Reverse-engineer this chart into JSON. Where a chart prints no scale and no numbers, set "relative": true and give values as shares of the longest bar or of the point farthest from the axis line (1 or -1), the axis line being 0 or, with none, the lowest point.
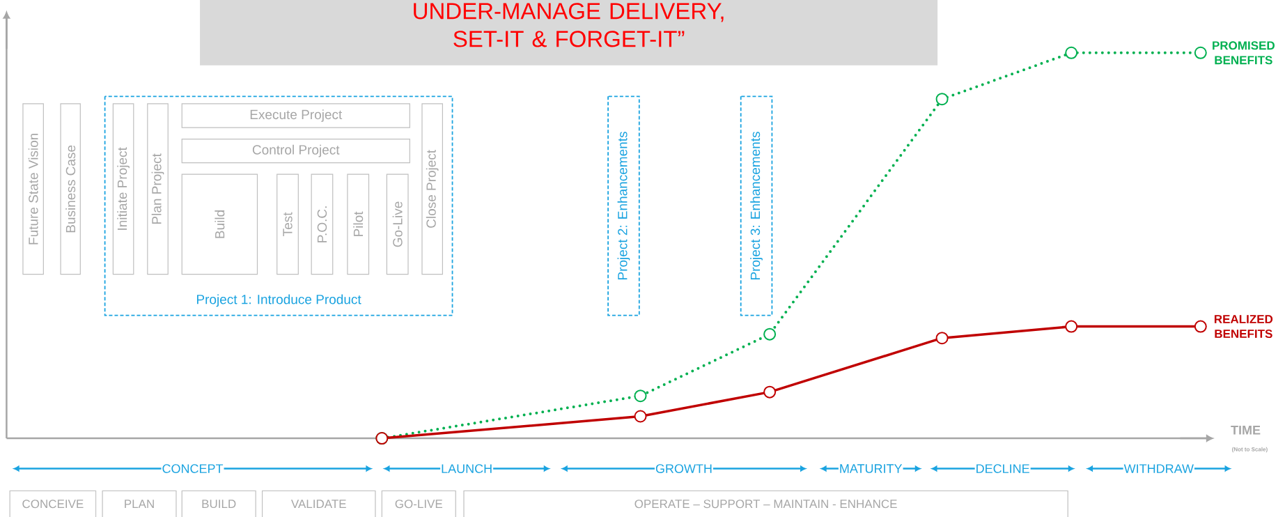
{
  "chart_data": {
    "type": "line",
    "relative": true,
    "title": "UNDER-MANAGE DELIVERY, SET-IT & FORGET-IT”",
    "xlabel": "TIME",
    "marker": "circle",
    "categories": [
      null,
      null,
      null,
      null,
      null,
      null,
      null,
      null,
      null,
      null,
      null,
      null,
      null,
      null,
      null,
      null,
      null,
      null,
      null,
      null
    ],
    "series": [
      {
        "name": "PROMISED BENEFITS",
        "color": "#00b050",
        "line_style": "dotted",
        "values": [
          0,
          null,
          null,
          null,
          null,
          null,
          0.11,
          null,
          null,
          0.27,
          null,
          null,
          null,
          0.88,
          null,
          null,
          1,
          null,
          null,
          1
        ]
      },
      {
        "name": "REALIZED BENEFITS",
        "color": "#c00000",
        "line_style": "solid",
        "values": [
          0,
          null,
          null,
          null,
          null,
          null,
          0.057,
          null,
          null,
          0.12,
          null,
          null,
          null,
          0.26,
          null,
          null,
          0.29,
          null,
          null,
          0.29
        ]
      }
    ],
    "annotations": [
      "(Not to Scale)",
      "CONCEPT",
      "LAUNCH",
      "GROWTH",
      "MATURITY",
      "DECLINE",
      "WITHDRAW",
      "CONCEIVE",
      "PLAN",
      "BUILD",
      "VALIDATE",
      "GO-LIVE",
      "OPERATE – SUPPORT – MAINTAIN - ENHANCE",
      "Future State Vision",
      "Business Case",
      "Initiate Project",
      "Plan Project",
      "Execute Project",
      "Control Project",
      "Build",
      "Test",
      "P.O.C.",
      "Pilot",
      "Go-Live",
      "Close Project",
      "Project 1: Introduce Product",
      "Project 2: Enhancements",
      "Project 3: Enhancements"
    ]
  }
}
